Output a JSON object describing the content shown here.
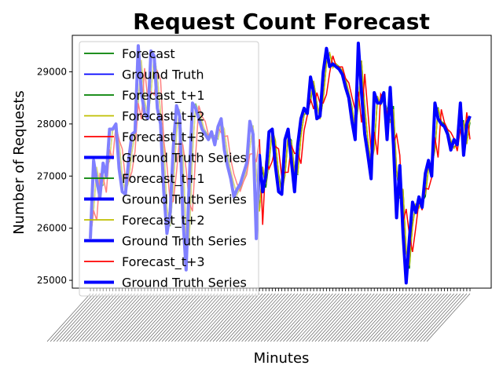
{
  "chart_data": {
    "type": "line",
    "title": "Request Count Forecast",
    "xlabel": "Minutes",
    "ylabel": "Number of Requests",
    "ylim": [
      24850,
      29700
    ],
    "y_ticks": [
      25000,
      26000,
      27000,
      28000,
      29000
    ],
    "x_tick_count": 120,
    "grid": false,
    "legend_position": "upper-left",
    "legend": [
      {
        "label": "Forecast",
        "color": "#008000",
        "width": "thin"
      },
      {
        "label": "Ground Truth",
        "color": "#0000ff",
        "width": "thin"
      },
      {
        "label": "Forecast_t+1",
        "color": "#008000",
        "width": "thin"
      },
      {
        "label": "Forecast_t+2",
        "color": "#bfbf00",
        "width": "thin"
      },
      {
        "label": "Forecast_t+3",
        "color": "#ff0000",
        "width": "thin"
      },
      {
        "label": "Ground Truth Series",
        "color": "#0000ff",
        "width": "thick"
      },
      {
        "label": "Forecast_t+1",
        "color": "#008000",
        "width": "thin"
      },
      {
        "label": "Ground Truth Series",
        "color": "#0000ff",
        "width": "thick"
      },
      {
        "label": "Forecast_t+2",
        "color": "#bfbf00",
        "width": "thin"
      },
      {
        "label": "Ground Truth Series",
        "color": "#0000ff",
        "width": "thick"
      },
      {
        "label": "Forecast_t+3",
        "color": "#ff0000",
        "width": "thin"
      },
      {
        "label": "Ground Truth Series",
        "color": "#0000ff",
        "width": "thick"
      }
    ],
    "ground_truth": [
      25800,
      27300,
      26900,
      26600,
      27250,
      27000,
      27900,
      27900,
      28000,
      27150,
      26700,
      26650,
      27300,
      27800,
      27850,
      29500,
      28600,
      28200,
      28100,
      29400,
      29300,
      28300,
      28000,
      26700,
      25900,
      26300,
      27550,
      28350,
      28150,
      26200,
      25200,
      26900,
      28400,
      28300,
      28100,
      27900,
      27800,
      27700,
      27850,
      27600,
      27950,
      28100,
      27500,
      27200,
      26950,
      26600,
      26750,
      26850,
      27050,
      27250,
      28050,
      27800,
      25800,
      27400,
      26700,
      27000,
      27850,
      27900,
      27200,
      26700,
      26650,
      27700,
      27900,
      27300,
      26700,
      27600,
      28100,
      28300,
      28200,
      28900,
      28600,
      28100,
      28150,
      29000,
      29450,
      29100,
      29150,
      29100,
      29050,
      28950,
      28700,
      28500,
      28050,
      27700,
      29550,
      28600,
      27800,
      27400,
      26950,
      28600,
      28400,
      28400,
      28600,
      27700,
      28700,
      27600,
      26200,
      27200,
      25900,
      24950,
      25800,
      26500,
      26300,
      26600,
      26400,
      27050,
      27300,
      27000,
      28400,
      28100,
      28000,
      27950,
      27800,
      27500,
      27700,
      27600,
      28400,
      27400,
      28000,
      28150
    ]
  }
}
